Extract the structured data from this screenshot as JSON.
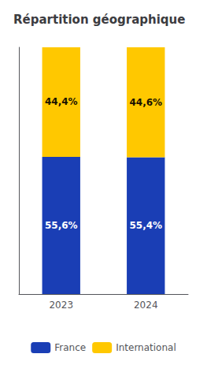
{
  "chart_data": {
    "type": "bar",
    "title": "Répartition géographique",
    "categories": [
      "2023",
      "2024"
    ],
    "series": [
      {
        "name": "France",
        "color": "#1a3eb5",
        "values": [
          55.6,
          55.4
        ],
        "value_labels": [
          "55,6%",
          "55,4%"
        ]
      },
      {
        "name": "International",
        "color": "#ffc800",
        "values": [
          44.4,
          44.6
        ],
        "value_labels": [
          "44,4%",
          "44,6%"
        ]
      }
    ],
    "stacked": true,
    "data_labels": true,
    "ylim": [
      0,
      100
    ],
    "tick_labels": "x",
    "legend": "bottom",
    "grid": false
  }
}
